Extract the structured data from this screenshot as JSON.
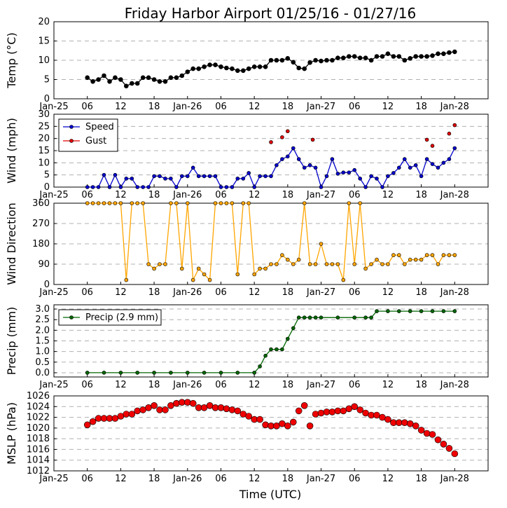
{
  "chart_data": {
    "title": "Friday Harbor Airport 01/25/16 - 01/27/16",
    "xlabel": "Time (UTC)",
    "x_range_hours": [
      -6,
      72
    ],
    "x_ticks": [
      {
        "h": -6,
        "label": "Jan-25"
      },
      {
        "h": 0,
        "label": "06"
      },
      {
        "h": 6,
        "label": "12"
      },
      {
        "h": 12,
        "label": "18"
      },
      {
        "h": 18,
        "label": "Jan-26"
      },
      {
        "h": 24,
        "label": "06"
      },
      {
        "h": 30,
        "label": "12"
      },
      {
        "h": 36,
        "label": "18"
      },
      {
        "h": 42,
        "label": "Jan-27"
      },
      {
        "h": 48,
        "label": "06"
      },
      {
        "h": 54,
        "label": "12"
      },
      {
        "h": 60,
        "label": "18"
      },
      {
        "h": 66,
        "label": "Jan-28"
      }
    ],
    "panels": [
      {
        "id": "temp",
        "type": "line",
        "ylabel": "Temp (°C)",
        "ylim": [
          0,
          20
        ],
        "yticks": [
          0,
          5,
          10,
          15,
          20
        ],
        "series": [
          {
            "color": "#000000",
            "marker": 3,
            "connect": true,
            "x": [
              0,
              1,
              2,
              3,
              4,
              5,
              6,
              7,
              8,
              9,
              10,
              11,
              12,
              13,
              14,
              15,
              16,
              17,
              18,
              19,
              20,
              21,
              22,
              23,
              24,
              25,
              26,
              27,
              28,
              29,
              30,
              31,
              32,
              33,
              34,
              35,
              36,
              37,
              38,
              39,
              40,
              41,
              42,
              43,
              44,
              45,
              46,
              47,
              48,
              49,
              50,
              51,
              52,
              53,
              54,
              55,
              56,
              57,
              58,
              59,
              60,
              61,
              62,
              63,
              64,
              65,
              66
            ],
            "y": [
              5.5,
              4.5,
              5,
              6,
              4.5,
              5.5,
              5,
              3.3,
              4,
              4,
              5.5,
              5.5,
              5,
              4.5,
              4.5,
              5.5,
              5.5,
              6,
              7,
              7.8,
              7.8,
              8.3,
              8.8,
              8.8,
              8.3,
              8,
              7.8,
              7.3,
              7.3,
              7.8,
              8.3,
              8.3,
              8.3,
              10,
              10,
              10,
              10.5,
              9.5,
              8,
              7.8,
              9.4,
              10,
              9.8,
              10,
              10,
              10.6,
              10.6,
              11,
              11,
              10.6,
              10.6,
              10,
              11,
              11,
              11.7,
              11,
              11,
              10,
              10.5,
              11,
              11,
              11,
              11.2,
              11.7,
              11.7,
              12,
              12.2
            ]
          }
        ]
      },
      {
        "id": "wind",
        "type": "line",
        "ylabel": "Wind (mph)",
        "ylim": [
          0,
          30
        ],
        "yticks": [
          0,
          5,
          10,
          15,
          20,
          25,
          30
        ],
        "legend": {
          "position": "top-left",
          "entries": [
            {
              "label": "Speed",
              "color": "#0000cc"
            },
            {
              "label": "Gust",
              "color": "#dd0000"
            }
          ]
        },
        "series": [
          {
            "name": "Speed",
            "color": "#0000cc",
            "marker": 2.5,
            "connect": true,
            "x": [
              0,
              1,
              2,
              3,
              4,
              5,
              6,
              7,
              8,
              9,
              10,
              11,
              12,
              13,
              14,
              15,
              16,
              17,
              18,
              19,
              20,
              21,
              22,
              23,
              24,
              25,
              26,
              27,
              28,
              29,
              30,
              31,
              32,
              33,
              34,
              35,
              36,
              37,
              38,
              39,
              40,
              41,
              42,
              43,
              44,
              45,
              46,
              47,
              48,
              49,
              50,
              51,
              52,
              53,
              54,
              55,
              56,
              57,
              58,
              59,
              60,
              61,
              62,
              63,
              64,
              65,
              66
            ],
            "y": [
              0,
              0,
              0,
              5,
              0,
              5,
              0,
              3.5,
              3.5,
              0,
              0,
              0,
              4.5,
              4.5,
              3.5,
              3.5,
              0,
              4.5,
              4.5,
              8,
              4.5,
              4.5,
              4.5,
              4.5,
              0,
              0,
              0,
              3.5,
              3.5,
              5.8,
              0,
              4.5,
              4.5,
              4.5,
              9,
              11.5,
              12.6,
              16,
              11.5,
              8,
              9,
              8,
              0,
              4.5,
              11.5,
              5.5,
              6,
              6,
              7,
              3.5,
              0,
              4.5,
              3.5,
              0,
              4.5,
              5.8,
              8,
              11.5,
              8,
              9,
              4.5,
              11.5,
              9.5,
              8,
              10,
              11.5,
              16
            ]
          },
          {
            "name": "Gust",
            "color": "#dd0000",
            "marker": 2.5,
            "connect": false,
            "x": [
              33,
              35,
              36,
              40.5,
              61,
              62,
              65,
              66
            ],
            "y": [
              18.5,
              20.5,
              23,
              19.5,
              19.5,
              17,
              22,
              25.5
            ]
          }
        ]
      },
      {
        "id": "dir",
        "type": "line",
        "ylabel": "Wind Direction",
        "ylim": [
          0,
          360
        ],
        "yticks": [
          0,
          90,
          180,
          270,
          360
        ],
        "series": [
          {
            "color": "#ffa500",
            "marker": 2.5,
            "connect": true,
            "x": [
              0,
              1,
              2,
              3,
              4,
              5,
              6,
              7,
              8,
              9,
              10,
              11,
              12,
              13,
              14,
              15,
              16,
              17,
              18,
              19,
              20,
              21,
              22,
              23,
              24,
              25,
              26,
              27,
              28,
              29,
              30,
              31,
              32,
              33,
              34,
              35,
              36,
              37,
              38,
              39,
              40,
              41,
              42,
              43,
              44,
              45,
              46,
              47,
              48,
              49,
              50,
              51,
              52,
              53,
              54,
              55,
              56,
              57,
              58,
              59,
              60,
              61,
              62,
              63,
              64,
              65,
              66
            ],
            "y": [
              360,
              360,
              360,
              360,
              360,
              360,
              360,
              20,
              360,
              360,
              360,
              90,
              70,
              90,
              90,
              360,
              360,
              70,
              360,
              20,
              70,
              45,
              20,
              360,
              360,
              360,
              360,
              45,
              360,
              360,
              45,
              70,
              70,
              90,
              90,
              130,
              110,
              90,
              110,
              360,
              90,
              90,
              180,
              90,
              90,
              90,
              20,
              360,
              90,
              360,
              70,
              90,
              110,
              90,
              90,
              130,
              130,
              90,
              110,
              110,
              110,
              130,
              130,
              90,
              130,
              130,
              130
            ]
          }
        ]
      },
      {
        "id": "precip",
        "type": "line",
        "ylabel": "Precip (mm)",
        "ylim": [
          -0.2,
          3.2
        ],
        "yticks": [
          0.0,
          0.5,
          1.0,
          1.5,
          2.0,
          2.5,
          3.0
        ],
        "legend": {
          "position": "top-left",
          "entries": [
            {
              "label": "Precip (2.9 mm)",
              "color": "#006600"
            }
          ]
        },
        "series": [
          {
            "name": "Precip (2.9 mm)",
            "color": "#006600",
            "marker": 2.5,
            "connect": true,
            "x": [
              0,
              3,
              6,
              9,
              12,
              15,
              18,
              21,
              24,
              27,
              30,
              31,
              32,
              33,
              34,
              35,
              36,
              37,
              38,
              39,
              40,
              41,
              42,
              45,
              48,
              50,
              51,
              52,
              54,
              56,
              58,
              60,
              62,
              64,
              66
            ],
            "y": [
              0,
              0,
              0,
              0,
              0,
              0,
              0,
              0,
              0,
              0,
              0,
              0.3,
              0.8,
              1.1,
              1.1,
              1.1,
              1.6,
              2.1,
              2.6,
              2.6,
              2.6,
              2.6,
              2.6,
              2.6,
              2.6,
              2.6,
              2.6,
              2.9,
              2.9,
              2.9,
              2.9,
              2.9,
              2.9,
              2.9,
              2.9
            ]
          }
        ]
      },
      {
        "id": "mslp",
        "type": "scatter",
        "ylabel": "MSLP (hPa)",
        "ylim": [
          1012,
          1026
        ],
        "yticks": [
          1012,
          1014,
          1016,
          1018,
          1020,
          1022,
          1024,
          1026
        ],
        "series": [
          {
            "color": "#ee0000",
            "marker": 4.5,
            "connect": false,
            "x": [
              0,
              1,
              2,
              3,
              4,
              5,
              6,
              7,
              8,
              9,
              10,
              11,
              12,
              13,
              14,
              15,
              16,
              17,
              18,
              19,
              20,
              21,
              22,
              23,
              24,
              25,
              26,
              27,
              28,
              29,
              30,
              31,
              32,
              33,
              34,
              35,
              36,
              37,
              38,
              39,
              40,
              41,
              42,
              43,
              44,
              45,
              46,
              47,
              48,
              49,
              50,
              51,
              52,
              53,
              54,
              55,
              56,
              57,
              58,
              59,
              60,
              61,
              62,
              63,
              64,
              65,
              66
            ],
            "y": [
              1020.6,
              1021.2,
              1021.8,
              1021.8,
              1021.8,
              1021.8,
              1022.2,
              1022.6,
              1022.6,
              1023.2,
              1023.4,
              1023.8,
              1024.2,
              1023.4,
              1023.4,
              1024.2,
              1024.6,
              1024.8,
              1024.8,
              1024.6,
              1023.8,
              1023.8,
              1024.2,
              1023.8,
              1023.8,
              1023.6,
              1023.4,
              1023.2,
              1022.6,
              1022.2,
              1021.6,
              1021.6,
              1020.6,
              1020.4,
              1020.4,
              1020.8,
              1020.4,
              1021.1,
              1023.2,
              1024.2,
              1020.4,
              1022.6,
              1022.8,
              1023,
              1023,
              1023.2,
              1023.2,
              1023.6,
              1024,
              1023.4,
              1022.8,
              1022.4,
              1022.4,
              1022,
              1021.6,
              1021,
              1021,
              1021,
              1020.8,
              1020.4,
              1019.6,
              1019,
              1018.8,
              1017.8,
              1017,
              1016.2,
              1015.2
            ]
          }
        ]
      }
    ]
  }
}
